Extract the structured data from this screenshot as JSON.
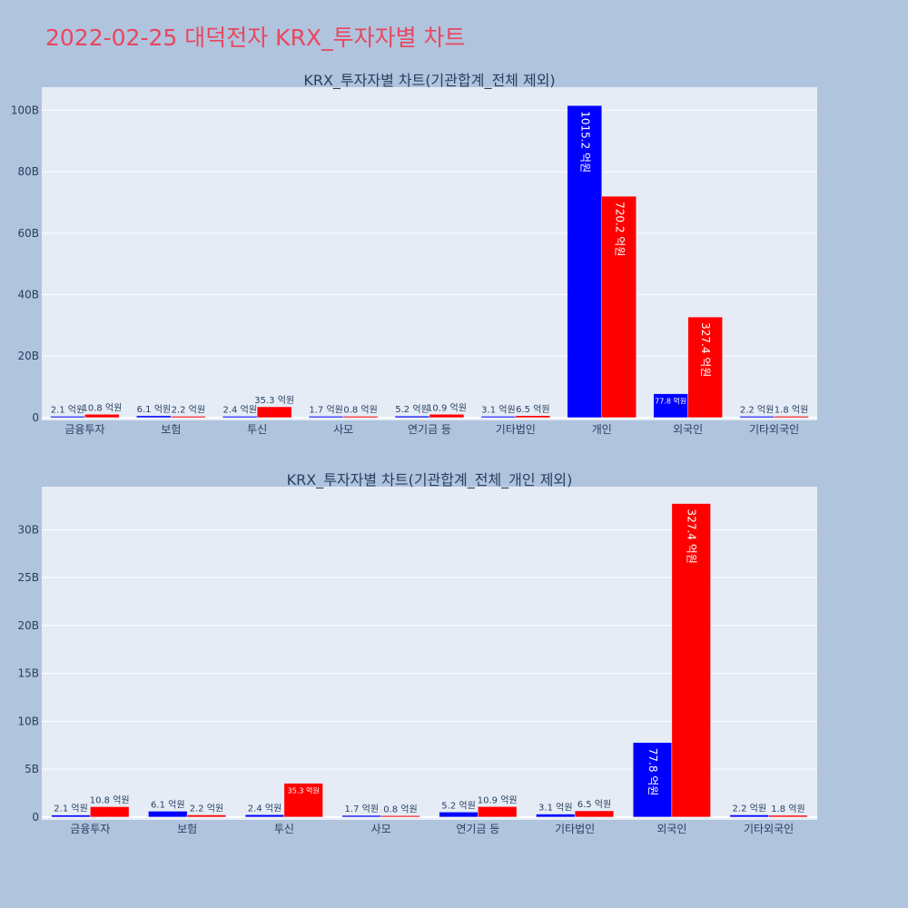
{
  "page_title": "2022-02-25 대덕전자 KRX_투자자별 차트",
  "colors": {
    "background": "#b0c4de",
    "plot_background": "#e5ecf6",
    "title": "#e8475f",
    "series_a": "#0000ff",
    "series_b": "#ff0000"
  },
  "chart_data": [
    {
      "type": "bar",
      "title": "KRX_투자자별 차트(기관합계_전체 제외)",
      "categories": [
        "금융투자",
        "보험",
        "투신",
        "사모",
        "연기금 등",
        "기타법인",
        "개인",
        "외국인",
        "기타외국인"
      ],
      "series": [
        {
          "color": "#0000ff",
          "values": [
            0.21,
            0.61,
            0.24,
            0.17,
            0.52,
            0.31,
            101.52,
            7.78,
            0.22
          ],
          "labels": [
            "2.1 억원",
            "6.1 억원",
            "2.4 억원",
            "1.7 억원",
            "5.2 억원",
            "3.1 억원",
            "1015.2 억원",
            "77.8 억원",
            "2.2 억원"
          ]
        },
        {
          "color": "#ff0000",
          "values": [
            1.08,
            0.22,
            3.53,
            0.08,
            1.09,
            0.65,
            72.02,
            32.74,
            0.18
          ],
          "labels": [
            "10.8 억원",
            "2.2 억원",
            "35.3 억원",
            "0.8 억원",
            "10.9 억원",
            "6.5 억원",
            "720.2 억원",
            "327.4 억원",
            "1.8 억원"
          ]
        }
      ],
      "y_ticks": [
        {
          "value": 0,
          "label": "0"
        },
        {
          "value": 20,
          "label": "20B"
        },
        {
          "value": 40,
          "label": "40B"
        },
        {
          "value": 60,
          "label": "60B"
        },
        {
          "value": 80,
          "label": "80B"
        },
        {
          "value": 100,
          "label": "100B"
        }
      ],
      "ylim": [
        -0.9,
        107.5
      ],
      "grid": true,
      "legend": "none"
    },
    {
      "type": "bar",
      "title": "KRX_투자자별 차트(기관합계_전체_개인 제외)",
      "categories": [
        "금융투자",
        "보험",
        "투신",
        "사모",
        "연기금 등",
        "기타법인",
        "외국인",
        "기타외국인"
      ],
      "series": [
        {
          "color": "#0000ff",
          "values": [
            0.21,
            0.61,
            0.24,
            0.17,
            0.52,
            0.31,
            7.78,
            0.22
          ],
          "labels": [
            "2.1 억원",
            "6.1 억원",
            "2.4 억원",
            "1.7 억원",
            "5.2 억원",
            "3.1 억원",
            "77.8 억원",
            "2.2 억원"
          ]
        },
        {
          "color": "#ff0000",
          "values": [
            1.08,
            0.22,
            3.53,
            0.08,
            1.09,
            0.65,
            32.74,
            0.18
          ],
          "labels": [
            "10.8 억원",
            "2.2 억원",
            "35.3 억원",
            "0.8 억원",
            "10.9 억원",
            "6.5 억원",
            "327.4 억원",
            "1.8 억원"
          ]
        }
      ],
      "y_ticks": [
        {
          "value": 0,
          "label": "0"
        },
        {
          "value": 5,
          "label": "5B"
        },
        {
          "value": 10,
          "label": "10B"
        },
        {
          "value": 15,
          "label": "15B"
        },
        {
          "value": 20,
          "label": "20B"
        },
        {
          "value": 25,
          "label": "25B"
        },
        {
          "value": 30,
          "label": "30B"
        }
      ],
      "ylim": [
        -0.3,
        34.5
      ],
      "grid": true,
      "legend": "none"
    }
  ]
}
